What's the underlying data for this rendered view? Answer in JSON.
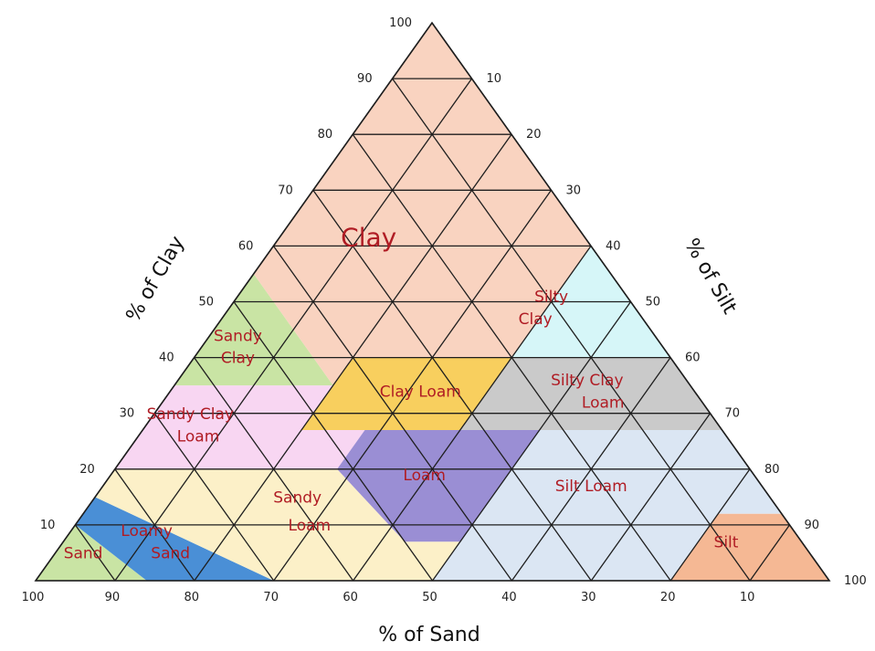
{
  "axes": {
    "clay_title": "% of Clay",
    "silt_title": "% of Silt",
    "sand_title": "% of Sand",
    "clay_ticks": [
      "10",
      "20",
      "30",
      "40",
      "50",
      "60",
      "70",
      "80",
      "90",
      "100"
    ],
    "silt_ticks": [
      "10",
      "20",
      "30",
      "40",
      "50",
      "60",
      "70",
      "80",
      "90",
      "100"
    ],
    "sand_ticks": [
      "100",
      "90",
      "80",
      "70",
      "60",
      "50",
      "40",
      "30",
      "20",
      "10"
    ]
  },
  "regions": [
    {
      "id": "clay",
      "lines": [
        "Clay"
      ],
      "color": "#f9d3c0"
    },
    {
      "id": "silty-clay",
      "lines": [
        "Silty",
        "Clay"
      ],
      "color": "#d6f6f8"
    },
    {
      "id": "sandy-clay",
      "lines": [
        "Sandy",
        "Clay"
      ],
      "color": "#c9e4a4"
    },
    {
      "id": "clay-loam",
      "lines": [
        "Clay Loam"
      ],
      "color": "#f8cf5e"
    },
    {
      "id": "silty-clay-loam",
      "lines": [
        "Silty Clay",
        "Loam"
      ],
      "color": "#cacaca"
    },
    {
      "id": "sandy-clay-loam",
      "lines": [
        "Sandy Clay",
        "Loam"
      ],
      "color": "#f8d6f2"
    },
    {
      "id": "loam",
      "lines": [
        "Loam"
      ],
      "color": "#9a8ed4"
    },
    {
      "id": "silt-loam",
      "lines": [
        "Silt Loam"
      ],
      "color": "#dbe6f3"
    },
    {
      "id": "sandy-loam",
      "lines": [
        "Sandy",
        "Loam"
      ],
      "color": "#fcf0c8"
    },
    {
      "id": "loamy-sand",
      "lines": [
        "Loamy",
        "Sand"
      ],
      "color": "#4a8fd6"
    },
    {
      "id": "sand",
      "lines": [
        "Sand"
      ],
      "color": "#c9e4a4"
    },
    {
      "id": "silt",
      "lines": [
        "Silt"
      ],
      "color": "#f5b894"
    }
  ]
}
